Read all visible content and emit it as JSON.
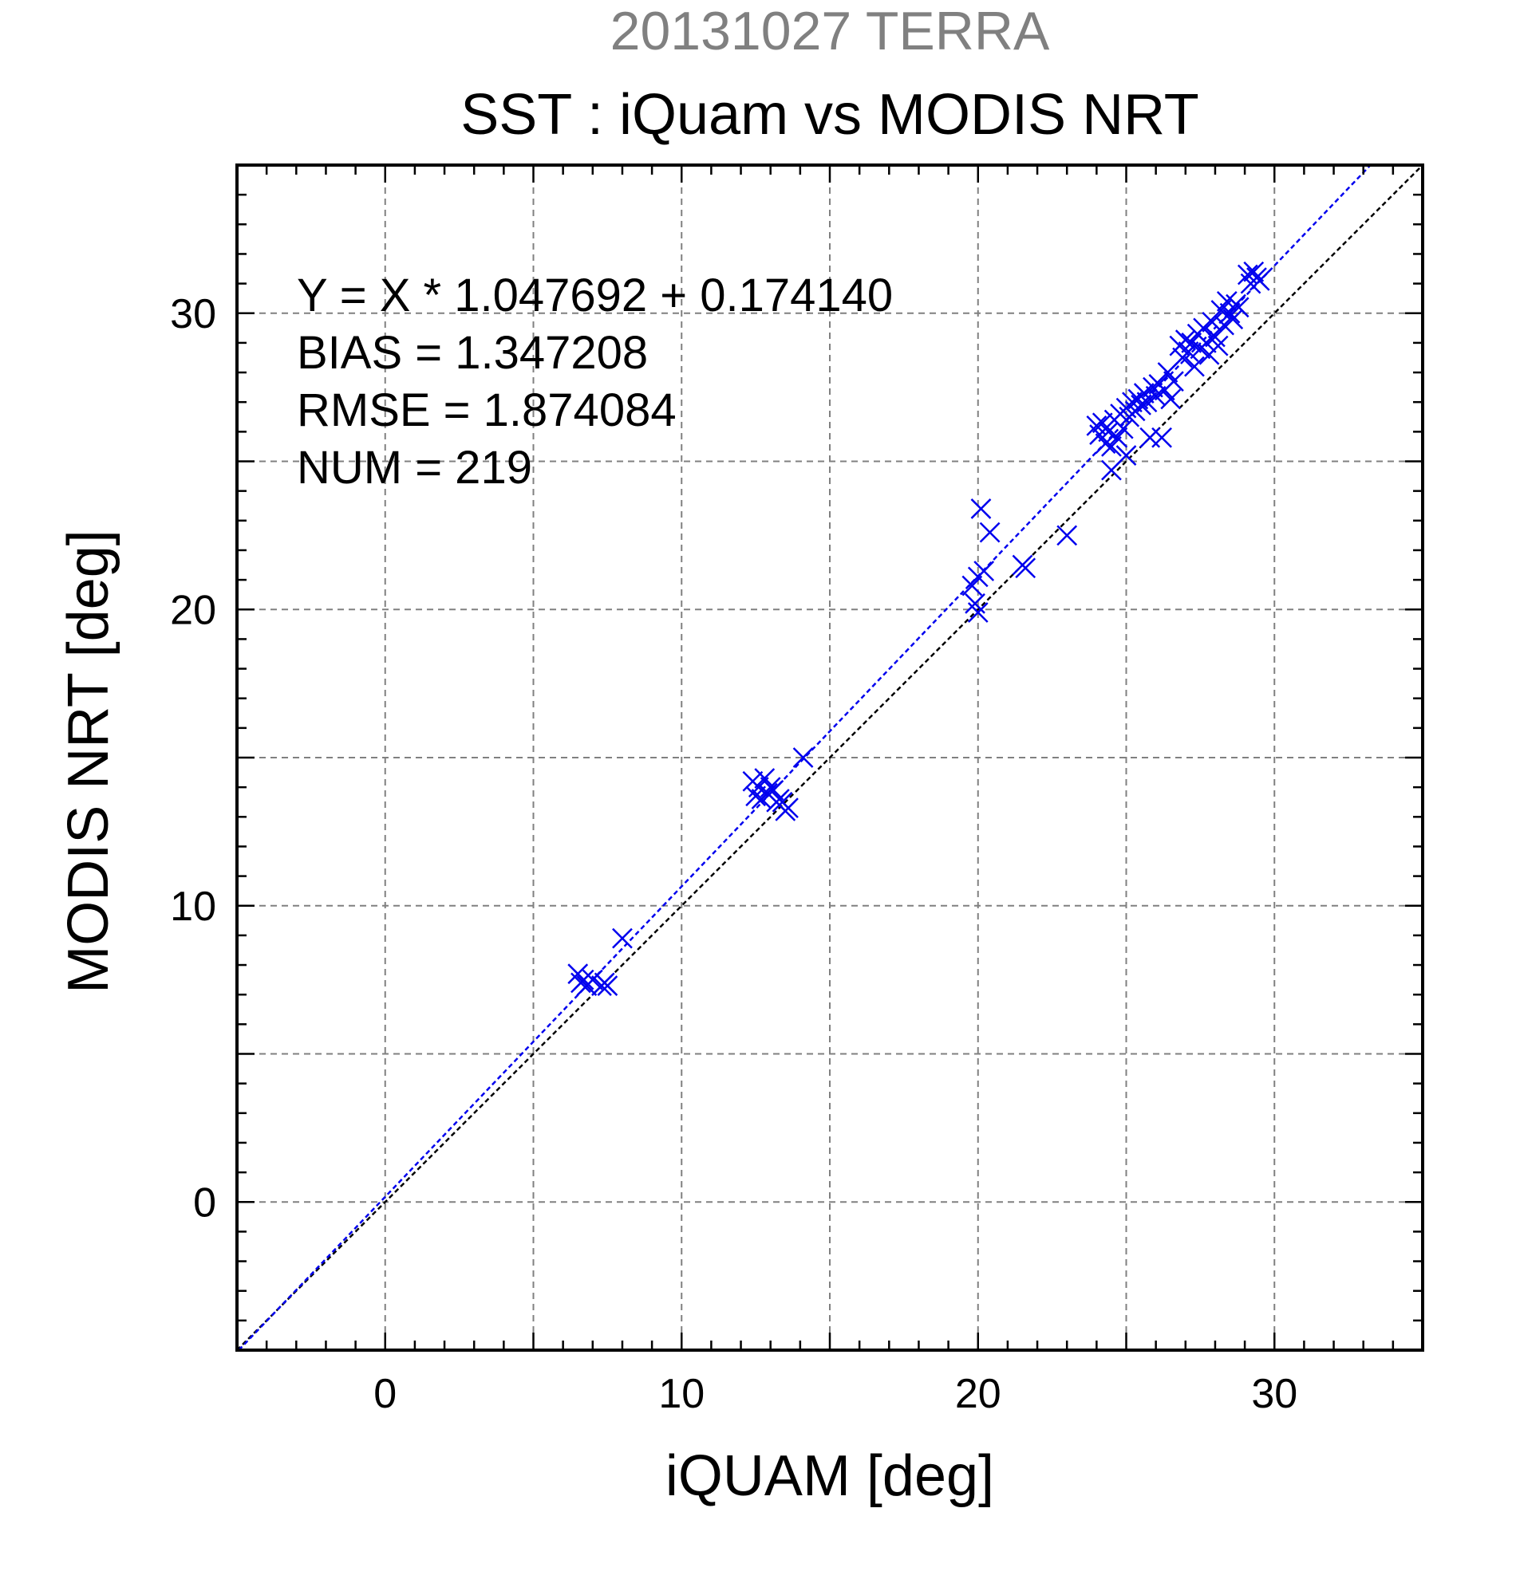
{
  "header": {
    "date_label": "20131027 TERRA",
    "title": "SST : iQuam vs MODIS NRT"
  },
  "stats": {
    "regression": "Y = X * 1.047692 + 0.174140",
    "bias": "BIAS = 1.347208",
    "rmse": "RMSE = 1.874084",
    "num": "NUM = 219"
  },
  "chart_data": {
    "type": "scatter",
    "title": "SST : iQuam vs MODIS NRT",
    "subtitle": "20131027 TERRA",
    "xlabel": "iQUAM [deg]",
    "ylabel": "MODIS NRT [deg]",
    "xlim": [
      -5,
      35
    ],
    "ylim": [
      -5,
      35
    ],
    "grid": true,
    "major_ticks": [
      0,
      10,
      20,
      30
    ],
    "minor_tick_step": 1,
    "tick_labels": [
      "0",
      "10",
      "20",
      "30"
    ],
    "marker": "x",
    "colors": {
      "points": "#0000ee",
      "fit_line": "#0000ee",
      "identity_line": "#000000",
      "grid": "#808080"
    },
    "fit_line": {
      "slope": 1.047692,
      "intercept": 0.17414,
      "style": "dashed"
    },
    "identity_line": {
      "slope": 1,
      "intercept": 0,
      "style": "dashed"
    },
    "series": [
      {
        "points": [
          [
            6.5,
            7.7
          ],
          [
            6.6,
            7.4
          ],
          [
            6.7,
            7.5
          ],
          [
            6.8,
            7.3
          ],
          [
            7.0,
            7.5
          ],
          [
            7.3,
            7.3
          ],
          [
            7.4,
            7.4
          ],
          [
            7.5,
            7.3
          ],
          [
            8.0,
            8.9
          ],
          [
            12.4,
            14.2
          ],
          [
            12.5,
            13.7
          ],
          [
            12.6,
            14.0
          ],
          [
            12.7,
            13.6
          ],
          [
            12.8,
            14.3
          ],
          [
            12.9,
            13.8
          ],
          [
            13.0,
            14.0
          ],
          [
            13.1,
            13.9
          ],
          [
            13.2,
            13.5
          ],
          [
            13.3,
            13.6
          ],
          [
            13.4,
            13.5
          ],
          [
            13.5,
            13.2
          ],
          [
            13.6,
            13.3
          ],
          [
            14.1,
            15.0
          ],
          [
            19.8,
            20.8
          ],
          [
            19.9,
            20.2
          ],
          [
            20.0,
            21.1
          ],
          [
            20.0,
            19.9
          ],
          [
            20.1,
            23.4
          ],
          [
            20.2,
            21.3
          ],
          [
            20.4,
            22.6
          ],
          [
            21.5,
            21.5
          ],
          [
            21.6,
            21.4
          ],
          [
            23.0,
            22.5
          ],
          [
            24.0,
            26.2
          ],
          [
            24.1,
            25.9
          ],
          [
            24.2,
            26.3
          ],
          [
            24.3,
            25.6
          ],
          [
            24.4,
            26.0
          ],
          [
            24.5,
            25.5
          ],
          [
            24.5,
            24.7
          ],
          [
            24.6,
            26.4
          ],
          [
            24.7,
            25.8
          ],
          [
            24.8,
            26.6
          ],
          [
            24.9,
            26.1
          ],
          [
            25.0,
            26.8
          ],
          [
            25.0,
            25.2
          ],
          [
            25.1,
            26.5
          ],
          [
            25.2,
            27.0
          ],
          [
            25.3,
            26.7
          ],
          [
            25.4,
            27.1
          ],
          [
            25.5,
            26.9
          ],
          [
            25.6,
            27.3
          ],
          [
            25.7,
            27.0
          ],
          [
            25.8,
            25.8
          ],
          [
            25.9,
            27.5
          ],
          [
            26.0,
            27.2
          ],
          [
            26.1,
            27.6
          ],
          [
            26.2,
            25.8
          ],
          [
            26.3,
            27.4
          ],
          [
            26.4,
            28.0
          ],
          [
            26.5,
            27.1
          ],
          [
            26.6,
            27.7
          ],
          [
            26.8,
            28.9
          ],
          [
            26.9,
            28.5
          ],
          [
            27.0,
            29.1
          ],
          [
            27.1,
            28.7
          ],
          [
            27.2,
            29.0
          ],
          [
            27.3,
            28.2
          ],
          [
            27.4,
            29.3
          ],
          [
            27.5,
            28.8
          ],
          [
            27.6,
            29.5
          ],
          [
            27.7,
            29.0
          ],
          [
            27.8,
            28.6
          ],
          [
            27.9,
            29.7
          ],
          [
            28.0,
            29.2
          ],
          [
            28.1,
            28.9
          ],
          [
            28.2,
            30.1
          ],
          [
            28.3,
            29.6
          ],
          [
            28.4,
            30.4
          ],
          [
            28.5,
            30.0
          ],
          [
            28.6,
            29.8
          ],
          [
            28.7,
            30.3
          ],
          [
            28.8,
            30.2
          ],
          [
            29.1,
            31.3
          ],
          [
            29.2,
            31.0
          ],
          [
            29.3,
            31.4
          ],
          [
            29.4,
            31.2
          ],
          [
            29.5,
            31.1
          ]
        ]
      }
    ]
  }
}
